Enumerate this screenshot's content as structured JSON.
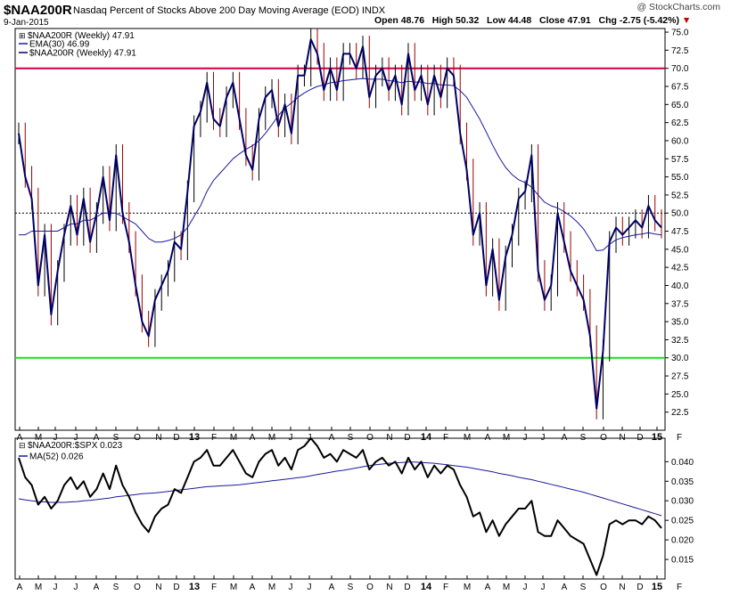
{
  "header": {
    "symbol": "$NAA200R",
    "description": "Nasdaq Percent of Stocks Above 200 Day Moving Average (EOD)  INDX",
    "credit": "@ StockCharts.com",
    "date": "9-Jan-2015",
    "ohlc": "Open 48.76   High 50.32   Low 44.48   Close 47.91   Chg -2.75 (-5.42%)",
    "chg_arrow": "▼"
  },
  "colors": {
    "price_line": "#000066",
    "ema_line": "#1a1a99",
    "bar_up": "#000000",
    "bar_down": "#990000",
    "upper_level_line": "#cc0044",
    "lower_level_line": "#22dd22",
    "ratio_line": "#000000",
    "ma_line": "#1a1a99"
  },
  "chart_data": [
    {
      "type": "line",
      "title": "$NAA200R (Weekly) 47.91",
      "series": [
        {
          "name": "$NAA200R (Weekly) 47.91",
          "values": [
            61,
            55,
            52,
            40,
            47,
            36,
            42,
            47,
            51,
            47,
            52,
            46,
            50,
            55,
            49,
            58,
            50,
            46,
            40,
            35,
            33,
            38,
            40,
            42,
            46,
            45,
            53,
            62,
            64,
            68,
            63,
            62,
            66,
            68,
            63,
            58,
            56,
            63,
            66,
            67,
            62,
            65,
            61,
            69,
            69,
            74,
            72,
            67,
            70,
            67,
            72,
            72,
            70,
            73,
            66,
            69,
            70,
            67,
            69,
            65,
            72,
            67,
            69,
            65,
            69,
            66,
            70,
            69,
            61,
            56,
            47,
            50,
            40,
            45,
            38,
            44,
            47,
            52,
            53,
            58,
            42,
            38,
            40,
            50,
            46,
            42,
            40,
            38,
            33,
            23,
            31,
            46,
            48,
            47,
            48,
            49,
            48,
            51,
            49,
            48
          ]
        },
        {
          "name": "EMA(30) 46.99",
          "values": [
            47,
            47,
            47.5,
            47.5,
            47.5,
            47.5,
            47.5,
            48,
            48.5,
            48.5,
            49,
            49,
            49.5,
            50,
            50,
            50,
            49.5,
            49,
            48.5,
            47.5,
            46.5,
            46,
            46,
            46.2,
            46.5,
            47,
            48,
            49.5,
            51,
            53,
            54.5,
            55.5,
            56.5,
            57.5,
            58.2,
            58.8,
            59.3,
            60,
            61,
            62.2,
            63.5,
            64.5,
            65.2,
            66,
            66.6,
            67.1,
            67.5,
            67.7,
            68,
            68.1,
            68.3,
            68.4,
            68.5,
            68.6,
            68.5,
            68.5,
            68.5,
            68.3,
            68.2,
            68,
            68.2,
            68.1,
            68.1,
            67.9,
            67.9,
            67.7,
            67.7,
            67.6,
            66.9,
            66,
            64.5,
            63,
            61.2,
            59.4,
            57.7,
            56.3,
            55.3,
            54.6,
            54.2,
            53.6,
            52.5,
            51.5,
            51,
            50.7,
            50.2,
            49.6,
            48.8,
            47.8,
            46.4,
            44.8,
            44.9,
            45.7,
            46.3,
            46.6,
            46.8,
            47,
            47.1,
            47.3,
            47.1,
            46.99
          ]
        }
      ],
      "x_tick_labels": [
        "A",
        "M",
        "J",
        "J",
        "A",
        "S",
        "O",
        "N",
        "D",
        "13",
        "F",
        "M",
        "A",
        "M",
        "J",
        "J",
        "A",
        "S",
        "O",
        "N",
        "D",
        "14",
        "F",
        "M",
        "A",
        "M",
        "J",
        "J",
        "A",
        "S",
        "O",
        "N",
        "D",
        "15",
        "F"
      ],
      "y_ticks": [
        22.5,
        25,
        27.5,
        30,
        32.5,
        35,
        37.5,
        40,
        42.5,
        45,
        47.5,
        50,
        52.5,
        55,
        57.5,
        60,
        62.5,
        65,
        67.5,
        70,
        72.5,
        75
      ],
      "ylim": [
        20,
        75.5
      ],
      "reference_lines": [
        70,
        50,
        30
      ],
      "grid": false
    },
    {
      "type": "line",
      "title": "$NAA200R:$SPX 0.023",
      "series": [
        {
          "name": "$NAA200R:$SPX 0.023",
          "values": [
            0.041,
            0.036,
            0.034,
            0.029,
            0.031,
            0.028,
            0.03,
            0.034,
            0.036,
            0.033,
            0.035,
            0.031,
            0.033,
            0.037,
            0.033,
            0.039,
            0.034,
            0.031,
            0.027,
            0.024,
            0.022,
            0.026,
            0.028,
            0.029,
            0.033,
            0.032,
            0.036,
            0.04,
            0.041,
            0.043,
            0.039,
            0.039,
            0.041,
            0.043,
            0.04,
            0.037,
            0.036,
            0.04,
            0.042,
            0.043,
            0.039,
            0.041,
            0.038,
            0.043,
            0.044,
            0.046,
            0.044,
            0.041,
            0.042,
            0.04,
            0.043,
            0.042,
            0.041,
            0.043,
            0.038,
            0.04,
            0.041,
            0.039,
            0.04,
            0.037,
            0.041,
            0.038,
            0.04,
            0.036,
            0.039,
            0.037,
            0.039,
            0.038,
            0.034,
            0.031,
            0.026,
            0.027,
            0.022,
            0.025,
            0.021,
            0.024,
            0.026,
            0.028,
            0.028,
            0.03,
            0.022,
            0.021,
            0.021,
            0.025,
            0.023,
            0.021,
            0.02,
            0.019,
            0.015,
            0.011,
            0.016,
            0.024,
            0.025,
            0.024,
            0.025,
            0.025,
            0.024,
            0.026,
            0.025,
            0.023
          ]
        },
        {
          "name": "MA(52) 0.026",
          "values": [
            0.0305,
            0.0302,
            0.03,
            0.0298,
            0.0297,
            0.0296,
            0.0296,
            0.0296,
            0.0297,
            0.0298,
            0.03,
            0.0301,
            0.0303,
            0.0305,
            0.0307,
            0.031,
            0.0312,
            0.0314,
            0.0316,
            0.0318,
            0.0319,
            0.032,
            0.0322,
            0.0324,
            0.0326,
            0.0328,
            0.033,
            0.0332,
            0.0334,
            0.0336,
            0.0337,
            0.0338,
            0.0339,
            0.034,
            0.0341,
            0.0343,
            0.0345,
            0.0347,
            0.0349,
            0.0351,
            0.0353,
            0.0355,
            0.0357,
            0.0359,
            0.0361,
            0.0364,
            0.0367,
            0.037,
            0.0373,
            0.0376,
            0.0378,
            0.0381,
            0.0384,
            0.0387,
            0.039,
            0.0392,
            0.0394,
            0.0396,
            0.0397,
            0.0398,
            0.0399,
            0.0399,
            0.0398,
            0.0397,
            0.0396,
            0.0394,
            0.0392,
            0.039,
            0.0388,
            0.0386,
            0.0383,
            0.038,
            0.0377,
            0.0374,
            0.037,
            0.0367,
            0.0364,
            0.036,
            0.0357,
            0.0354,
            0.035,
            0.0346,
            0.0342,
            0.0338,
            0.0334,
            0.033,
            0.0326,
            0.0322,
            0.0317,
            0.0312,
            0.0307,
            0.0302,
            0.0297,
            0.0292,
            0.0287,
            0.0282,
            0.0277,
            0.0272,
            0.0267,
            0.0262
          ]
        }
      ],
      "x_tick_labels": [
        "A",
        "M",
        "J",
        "J",
        "A",
        "S",
        "O",
        "N",
        "D",
        "13",
        "F",
        "M",
        "A",
        "M",
        "J",
        "J",
        "A",
        "S",
        "O",
        "N",
        "D",
        "14",
        "F",
        "M",
        "A",
        "M",
        "J",
        "J",
        "A",
        "S",
        "O",
        "N",
        "D",
        "15",
        "F"
      ],
      "y_ticks": [
        0.015,
        0.02,
        0.025,
        0.03,
        0.035,
        0.04
      ],
      "ylim": [
        0.01,
        0.046
      ],
      "grid": false
    }
  ]
}
